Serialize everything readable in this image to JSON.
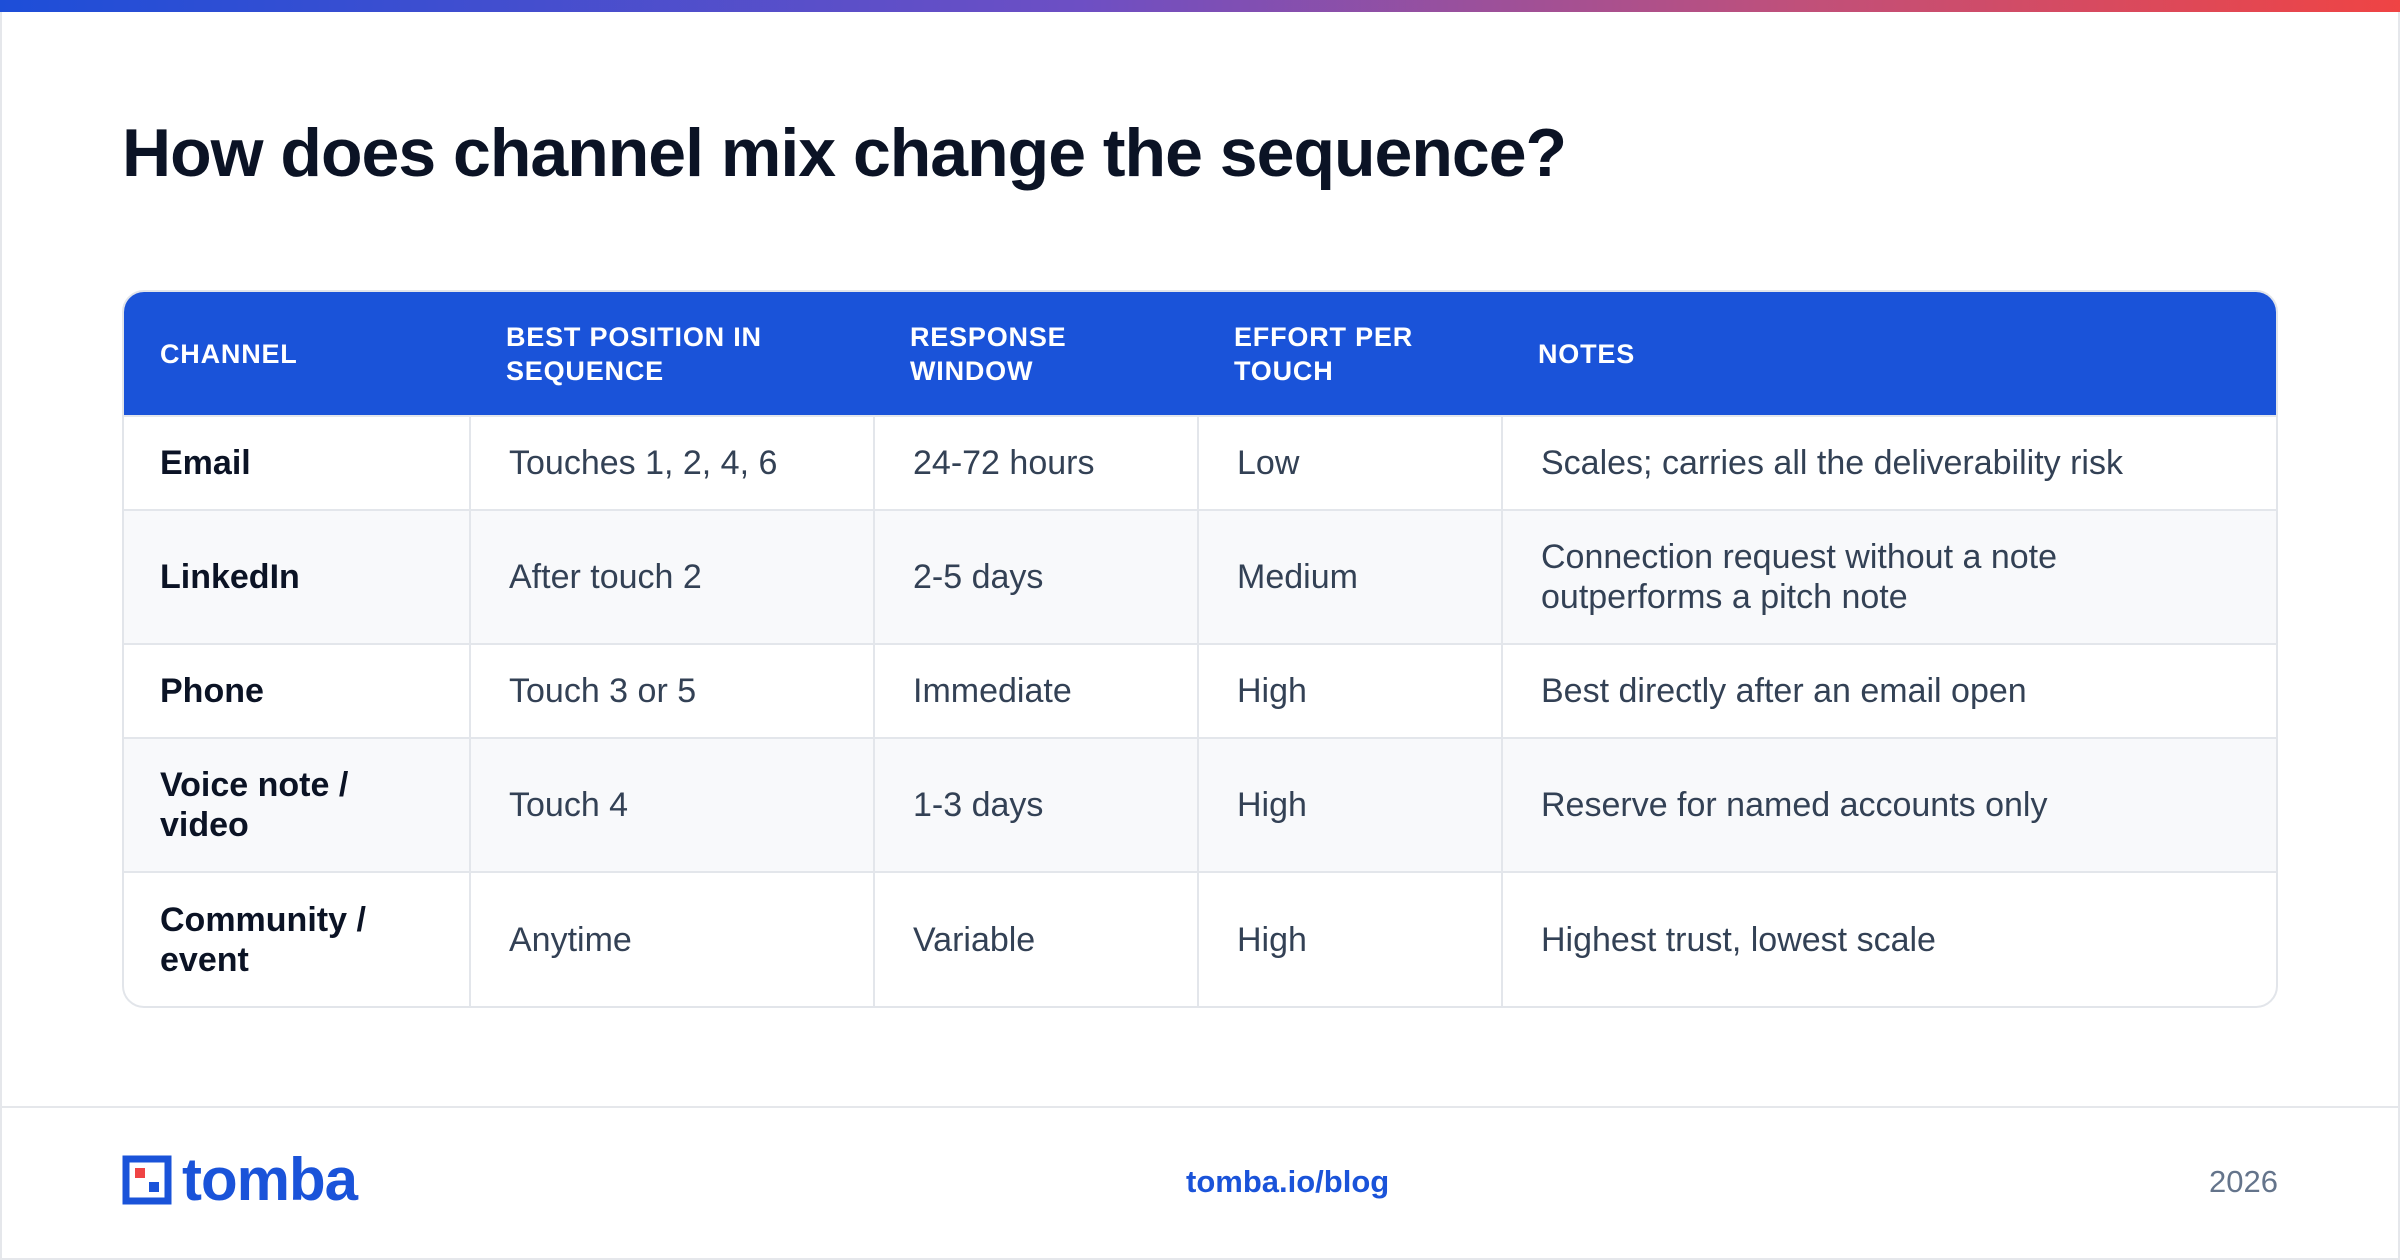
{
  "page": {
    "title": "How does channel mix change the sequence?"
  },
  "table": {
    "headers": [
      "CHANNEL",
      "BEST POSITION IN SEQUENCE",
      "RESPONSE WINDOW",
      "EFFORT PER TOUCH",
      "NOTES"
    ],
    "rows": [
      [
        "Email",
        "Touches 1, 2, 4, 6",
        "24-72 hours",
        "Low",
        "Scales; carries all the deliverability risk"
      ],
      [
        "LinkedIn",
        "After touch 2",
        "2-5 days",
        "Medium",
        "Connection request without a note outperforms a pitch note"
      ],
      [
        "Phone",
        "Touch 3 or 5",
        "Immediate",
        "High",
        "Best directly after an email open"
      ],
      [
        "Voice note / video",
        "Touch 4",
        "1-3 days",
        "High",
        "Reserve for named accounts only"
      ],
      [
        "Community / event",
        "Anytime",
        "Variable",
        "High",
        "Highest trust, lowest scale"
      ]
    ]
  },
  "footer": {
    "logo_text": "tomba",
    "link": "tomba.io/blog",
    "year": "2026"
  },
  "colors": {
    "accent": "#1a53d9",
    "title": "#0b1325",
    "body_text": "#334155",
    "gradient_start": "#1d4ed8",
    "gradient_end": "#ef4444"
  }
}
